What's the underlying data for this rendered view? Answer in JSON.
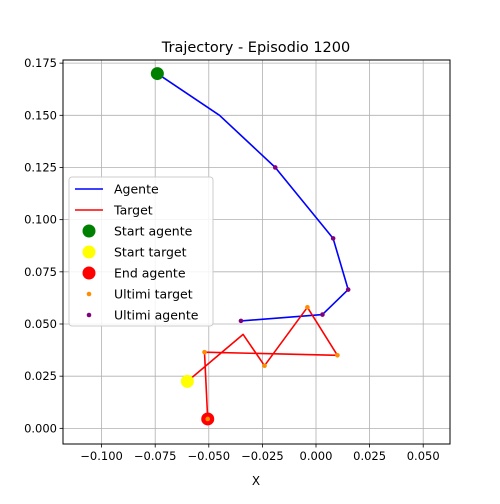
{
  "chart_data": {
    "type": "line",
    "title": "Trajectory - Episodio 1200",
    "xlabel": "X",
    "ylabel": "",
    "xlim": [
      -0.118,
      0.0625
    ],
    "ylim": [
      -0.0075,
      0.1765
    ],
    "xticks": [
      -0.1,
      -0.075,
      -0.05,
      -0.025,
      0.0,
      0.025,
      0.05
    ],
    "xtick_labels": [
      "−0.100",
      "−0.075",
      "−0.050",
      "−0.025",
      "0.000",
      "0.025",
      "0.050"
    ],
    "yticks": [
      0.0,
      0.025,
      0.05,
      0.075,
      0.1,
      0.125,
      0.15,
      0.175
    ],
    "ytick_labels": [
      "0.000",
      "0.025",
      "0.050",
      "0.075",
      "0.100",
      "0.125",
      "0.150",
      "0.175"
    ],
    "grid": true,
    "legend_position": "center-left",
    "series": [
      {
        "name": "Agente",
        "kind": "line",
        "color": "#0000ff",
        "points": [
          [
            -0.074,
            0.17
          ],
          [
            -0.045,
            0.15
          ],
          [
            -0.019,
            0.125
          ],
          [
            0.008,
            0.091
          ],
          [
            0.015,
            0.0665
          ],
          [
            0.003,
            0.0545
          ],
          [
            -0.035,
            0.0515
          ]
        ]
      },
      {
        "name": "Target",
        "kind": "line",
        "color": "#ff0000",
        "points": [
          [
            -0.06,
            0.0225
          ],
          [
            -0.034,
            0.045
          ],
          [
            -0.024,
            0.03
          ],
          [
            -0.004,
            0.058
          ],
          [
            0.01,
            0.035
          ],
          [
            -0.052,
            0.0365
          ],
          [
            -0.0505,
            0.0045
          ]
        ]
      },
      {
        "name": "Start agente",
        "kind": "marker",
        "color": "#008000",
        "points": [
          [
            -0.074,
            0.17
          ]
        ]
      },
      {
        "name": "Start target",
        "kind": "marker",
        "color": "#ffff00",
        "points": [
          [
            -0.06,
            0.0225
          ]
        ]
      },
      {
        "name": "End agente",
        "kind": "marker",
        "color": "#ff0000",
        "points": [
          [
            -0.0505,
            0.0045
          ]
        ]
      },
      {
        "name": "Ultimi target",
        "kind": "dots",
        "color": "#ff8c00",
        "points": [
          [
            -0.052,
            0.0365
          ],
          [
            -0.024,
            0.03
          ],
          [
            -0.004,
            0.058
          ],
          [
            0.01,
            0.035
          ],
          [
            -0.0505,
            0.0045
          ]
        ]
      },
      {
        "name": "Ultimi agente",
        "kind": "dots",
        "color": "#800080",
        "points": [
          [
            -0.019,
            0.125
          ],
          [
            0.008,
            0.091
          ],
          [
            0.015,
            0.0665
          ],
          [
            0.003,
            0.0545
          ],
          [
            -0.035,
            0.0515
          ]
        ]
      }
    ]
  }
}
